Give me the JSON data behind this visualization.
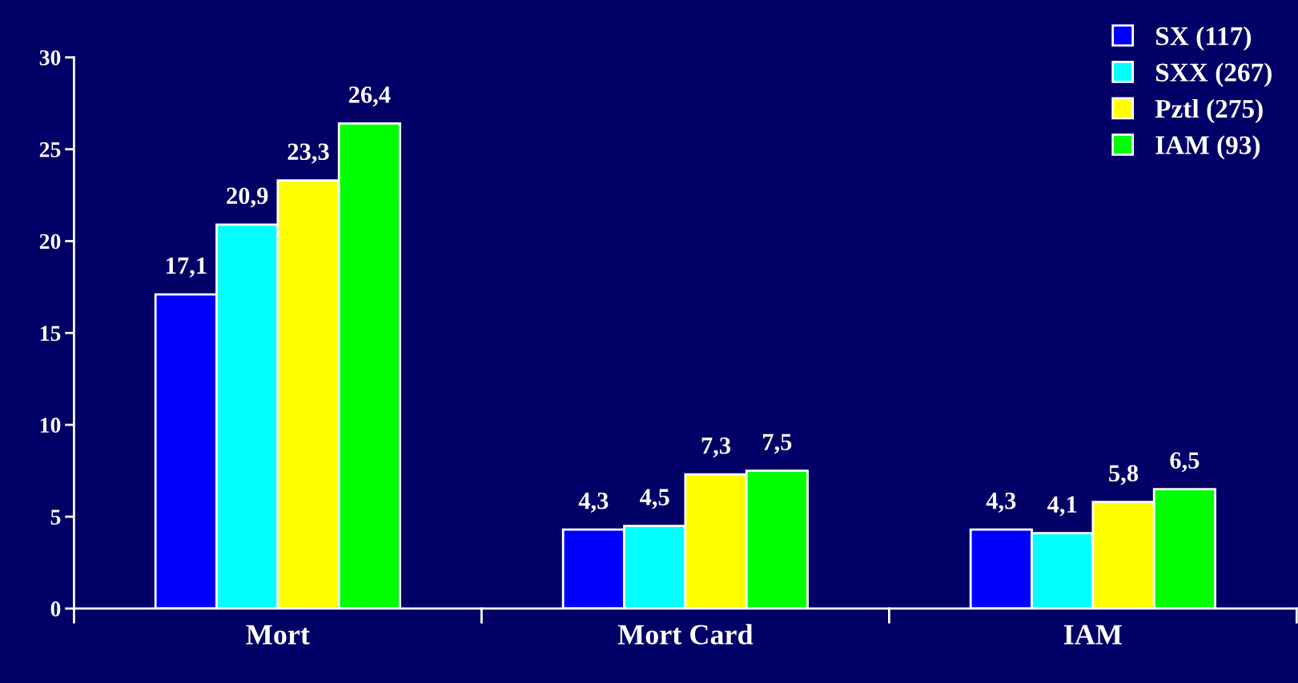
{
  "chart_data": {
    "type": "bar",
    "categories": [
      "Mort",
      "Mort Card",
      "IAM"
    ],
    "series": [
      {
        "name": "SX (117)",
        "color": "#0000ff",
        "values": [
          17.1,
          4.3,
          4.3
        ],
        "value_labels": [
          "17,1",
          "4,3",
          "4,3"
        ]
      },
      {
        "name": "SXX (267)",
        "color": "#00ffff",
        "values": [
          20.9,
          4.5,
          4.1
        ],
        "value_labels": [
          "20,9",
          "4,5",
          "4,1"
        ]
      },
      {
        "name": "Pztl (275)",
        "color": "#ffff00",
        "values": [
          23.3,
          7.3,
          5.8
        ],
        "value_labels": [
          "23,3",
          "7,3",
          "5,8"
        ]
      },
      {
        "name": "IAM (93)",
        "color": "#00ff00",
        "values": [
          26.4,
          7.5,
          6.5
        ],
        "value_labels": [
          "26,4",
          "7,5",
          "6,5"
        ]
      }
    ],
    "ylim": [
      0,
      30
    ],
    "yticks": [
      0,
      5,
      10,
      15,
      20,
      25,
      30
    ],
    "grid": false,
    "legend": "top right"
  }
}
